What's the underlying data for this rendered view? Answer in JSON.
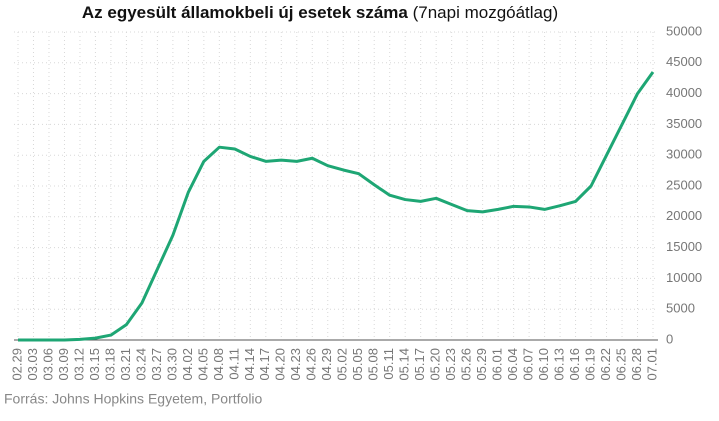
{
  "chart_data": {
    "type": "line",
    "title": "Az egyesült államokbeli új esetek száma",
    "subtitle": "(7napi mozgóátlag)",
    "source": "Forrás: Johns Hopkins Egyetem, Portfolio",
    "categories": [
      "02.29",
      "03.03",
      "03.06",
      "03.09",
      "03.12",
      "03.15",
      "03.18",
      "03.21",
      "03.24",
      "03.27",
      "03.30",
      "04.02",
      "04.05",
      "04.08",
      "04.11",
      "04.14",
      "04.17",
      "04.20",
      "04.23",
      "04.26",
      "04.29",
      "05.02",
      "05.05",
      "05.08",
      "05.11",
      "05.14",
      "05.17",
      "05.20",
      "05.23",
      "05.26",
      "05.29",
      "06.01",
      "06.04",
      "06.07",
      "06.10",
      "06.13",
      "06.16",
      "06.19",
      "06.22",
      "06.25",
      "06.28",
      "07.01"
    ],
    "series": [
      {
        "name": "Új esetek",
        "color": "#1ea674",
        "values": [
          0,
          0,
          0,
          0,
          100,
          300,
          800,
          2500,
          6000,
          11500,
          17000,
          24000,
          29000,
          31300,
          31000,
          29800,
          29000,
          29200,
          29000,
          29500,
          28300,
          27600,
          27000,
          25200,
          23500,
          22800,
          22500,
          23000,
          22000,
          21000,
          20800,
          21200,
          21700,
          21600,
          21200,
          21800,
          22500,
          25000,
          30000,
          35000,
          40000,
          43500
        ]
      }
    ],
    "ylim": [
      0,
      50000
    ],
    "yticks": [
      0,
      5000,
      10000,
      15000,
      20000,
      25000,
      30000,
      35000,
      40000,
      45000,
      50000
    ],
    "grid": true
  }
}
